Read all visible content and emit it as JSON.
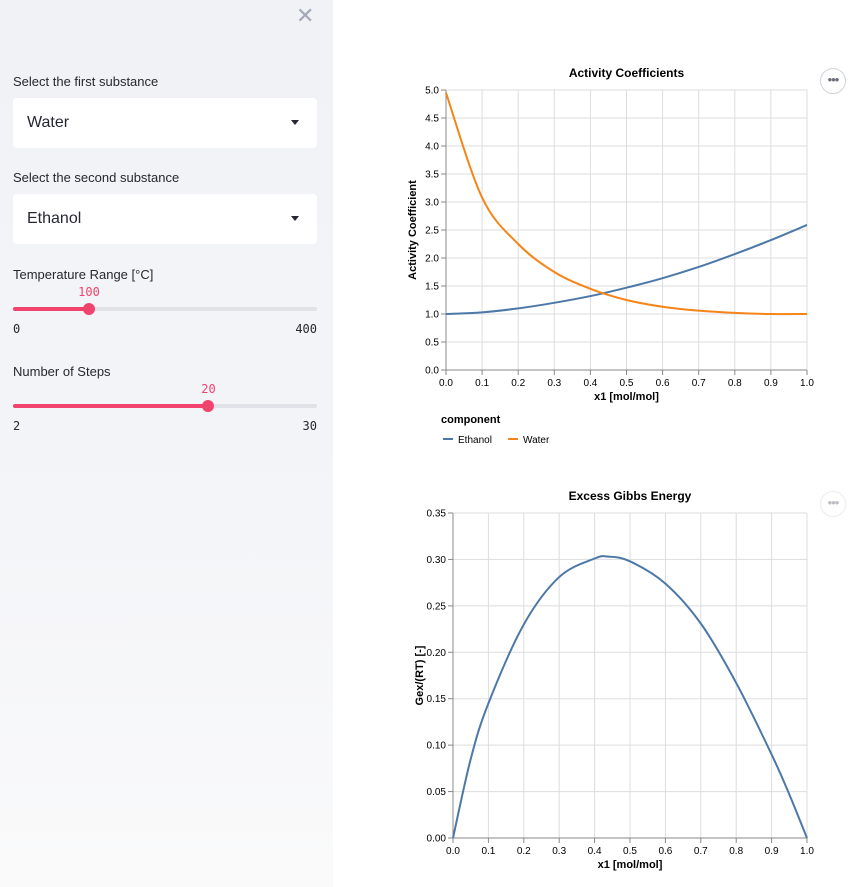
{
  "sidebar": {
    "close_icon": "✕",
    "first": {
      "label": "Select the first substance",
      "value": "Water"
    },
    "second": {
      "label": "Select the second substance",
      "value": "Ethanol"
    },
    "temperature": {
      "label": "Temperature Range [°C]",
      "value": "100",
      "min": "0",
      "max": "400",
      "fraction": 0.25
    },
    "steps": {
      "label": "Number of Steps",
      "value": "20",
      "min": "2",
      "max": "30",
      "fraction": 0.643
    }
  },
  "main": {
    "menu_icon": "•••"
  },
  "colors": {
    "accent": "#f0436d",
    "series_blue": "#4c78a8",
    "series_orange": "#f58518"
  },
  "chart_data": [
    {
      "type": "line",
      "title": "Activity Coefficients",
      "xlabel": "x1 [mol/mol]",
      "ylabel": "Activity Coefficient",
      "xlim": [
        0,
        1
      ],
      "ylim": [
        0,
        5
      ],
      "xticks": [
        "0.0",
        "0.1",
        "0.2",
        "0.3",
        "0.4",
        "0.5",
        "0.6",
        "0.7",
        "0.8",
        "0.9",
        "1.0"
      ],
      "yticks": [
        "0.0",
        "0.5",
        "1.0",
        "1.5",
        "2.0",
        "2.5",
        "3.0",
        "3.5",
        "4.0",
        "4.5",
        "5.0"
      ],
      "legend_title": "component",
      "legend_position": "bottom-left",
      "grid": true,
      "series": [
        {
          "name": "Ethanol",
          "x": [
            0,
            0.1,
            0.2,
            0.3,
            0.4,
            0.5,
            0.6,
            0.7,
            0.8,
            0.9,
            1.0
          ],
          "values": [
            1.0,
            1.03,
            1.1,
            1.2,
            1.32,
            1.47,
            1.64,
            1.84,
            2.07,
            2.32,
            2.59
          ]
        },
        {
          "name": "Water",
          "x": [
            0,
            0.1,
            0.2,
            0.3,
            0.4,
            0.5,
            0.6,
            0.7,
            0.8,
            0.9,
            1.0
          ],
          "values": [
            4.95,
            3.08,
            2.25,
            1.75,
            1.45,
            1.25,
            1.13,
            1.06,
            1.02,
            1.0,
            1.0
          ]
        }
      ]
    },
    {
      "type": "line",
      "title": "Excess Gibbs Energy",
      "xlabel": "x1 [mol/mol]",
      "ylabel": "Gex/(RT) [-]",
      "xlim": [
        0,
        1
      ],
      "ylim": [
        0,
        0.35
      ],
      "xticks": [
        "0.0",
        "0.1",
        "0.2",
        "0.3",
        "0.4",
        "0.5",
        "0.6",
        "0.7",
        "0.8",
        "0.9",
        "1.0"
      ],
      "yticks": [
        "0.00",
        "0.05",
        "0.10",
        "0.15",
        "0.20",
        "0.25",
        "0.30",
        "0.35"
      ],
      "grid": true,
      "series": [
        {
          "x": [
            0,
            0.05,
            0.1,
            0.2,
            0.3,
            0.4,
            0.44,
            0.5,
            0.6,
            0.7,
            0.8,
            0.9,
            0.95,
            1.0
          ],
          "values": [
            0,
            0.085,
            0.145,
            0.23,
            0.281,
            0.301,
            0.303,
            0.298,
            0.274,
            0.231,
            0.167,
            0.09,
            0.047,
            0
          ]
        }
      ]
    }
  ]
}
